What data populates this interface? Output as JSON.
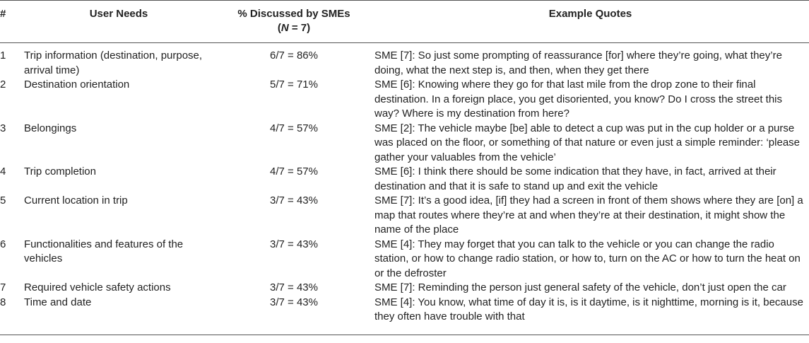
{
  "headers": {
    "num": "#",
    "need": "User Needs",
    "pct_line1": "% Discussed by SMEs",
    "pct_line2_open": "(",
    "pct_line2_var": "N",
    "pct_line2_rest": " = 7)",
    "quote": "Example Quotes"
  },
  "rows": [
    {
      "num": "1",
      "need": "Trip information (destination, purpose, arrival time)",
      "pct": "6/7 = 86%",
      "quote": "SME [7]: So just some prompting of reassurance [for] where they’re going, what they’re doing, what the next step is, and then, when they get there"
    },
    {
      "num": "2",
      "need": "Destination orientation",
      "pct": "5/7 = 71%",
      "quote": "SME [6]: Knowing where they go for that last mile from the drop zone to their final destination. In a foreign place, you get disoriented, you know? Do I cross the street this way? Where is my destination from here?"
    },
    {
      "num": "3",
      "need": "Belongings",
      "pct": "4/7 = 57%",
      "quote": "SME [2]: The vehicle maybe [be] able to detect a cup was put in the cup holder or a purse was placed on the floor, or something of that nature or even just a simple reminder: ‘please gather your valuables from the vehicle’"
    },
    {
      "num": "4",
      "need": "Trip completion",
      "pct": "4/7 = 57%",
      "quote": "SME [6]: I think there should be some indication that they have, in fact, arrived at their destination and that it is safe to stand up and exit the vehicle"
    },
    {
      "num": "5",
      "need": "Current location in trip",
      "pct": "3/7 = 43%",
      "quote": "SME [7]: It’s a good idea, [if] they had a screen in front of them shows where they are [on] a map that routes where they’re at and when they’re at their destination, it might show the name of the place"
    },
    {
      "num": "6",
      "need": "Functionalities and features of the vehicles",
      "pct": "3/7 = 43%",
      "quote": "SME [4]: They may forget that you can talk to the vehicle or you can change the radio station, or how to change radio station, or how to, turn on the AC or how to turn the heat on or the defroster"
    },
    {
      "num": "7",
      "need": "Required vehicle safety actions",
      "pct": "3/7 = 43%",
      "quote": "SME [7]: Reminding the person just general safety of the vehicle, don’t just open the car"
    },
    {
      "num": "8",
      "need": "Time and date",
      "pct": "3/7 = 43%",
      "quote": "SME [4]: You know, what time of day it is, is it daytime, is it nighttime, morning is it, because they often have trouble with that"
    }
  ]
}
